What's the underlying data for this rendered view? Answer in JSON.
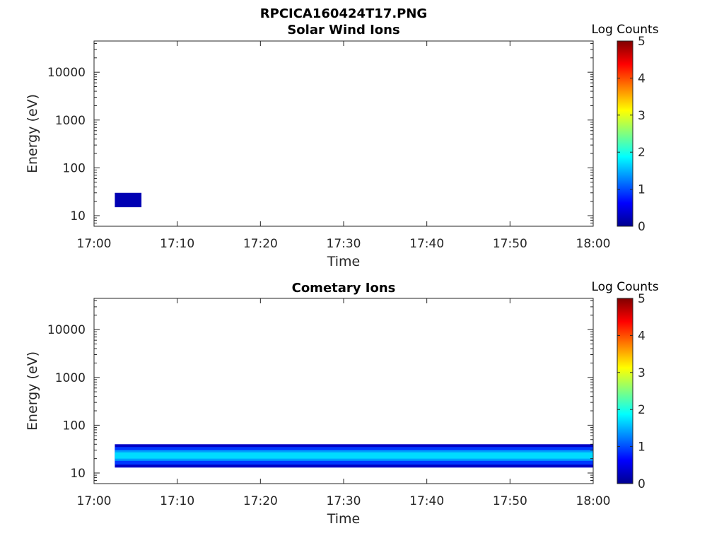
{
  "figure_title": "RPCICA160424T17.PNG",
  "chart_data": [
    {
      "type": "heatmap",
      "title": "Solar Wind Ions",
      "xlabel": "Time",
      "ylabel": "Energy (eV)",
      "x_tick_labels": [
        "17:00",
        "17:10",
        "17:20",
        "17:30",
        "17:40",
        "17:50",
        "18:00"
      ],
      "x_range_minutes": [
        0,
        60
      ],
      "y_scale": "log",
      "y_ticks": [
        10,
        100,
        1000,
        10000
      ],
      "y_tick_labels": [
        "10",
        "100",
        "1000",
        "10000"
      ],
      "y_range": [
        6,
        45000
      ],
      "colorbar": {
        "label": "Log Counts",
        "range": [
          0,
          5
        ],
        "ticks": [
          "0",
          "1",
          "2",
          "3",
          "4",
          "5"
        ],
        "colormap": "jet"
      },
      "regions": [
        {
          "t_start_min": 2.5,
          "t_end_min": 5.7,
          "e_min": 15,
          "e_max": 30,
          "log_counts": 0.2
        }
      ]
    },
    {
      "type": "heatmap",
      "title": "Cometary Ions",
      "xlabel": "Time",
      "ylabel": "Energy (eV)",
      "x_tick_labels": [
        "17:00",
        "17:10",
        "17:20",
        "17:30",
        "17:40",
        "17:50",
        "18:00"
      ],
      "x_range_minutes": [
        0,
        60
      ],
      "y_scale": "log",
      "y_ticks": [
        10,
        100,
        1000,
        10000
      ],
      "y_tick_labels": [
        "10",
        "100",
        "1000",
        "10000"
      ],
      "y_range": [
        6,
        45000
      ],
      "colorbar": {
        "label": "Log Counts",
        "range": [
          0,
          5
        ],
        "ticks": [
          "0",
          "1",
          "2",
          "3",
          "4",
          "5"
        ],
        "colormap": "jet"
      },
      "regions": [
        {
          "t_start_min": 2.5,
          "t_end_min": 60,
          "e_min": 13,
          "e_max": 40,
          "log_counts": 0.3
        },
        {
          "t_start_min": 2.5,
          "t_end_min": 60,
          "e_min": 15,
          "e_max": 35,
          "log_counts": 0.9
        },
        {
          "t_start_min": 2.5,
          "t_end_min": 60,
          "e_min": 18,
          "e_max": 30,
          "log_counts": 1.4
        },
        {
          "t_start_min": 2.5,
          "t_end_min": 60,
          "e_min": 20,
          "e_max": 27,
          "log_counts": 1.7
        }
      ]
    }
  ]
}
